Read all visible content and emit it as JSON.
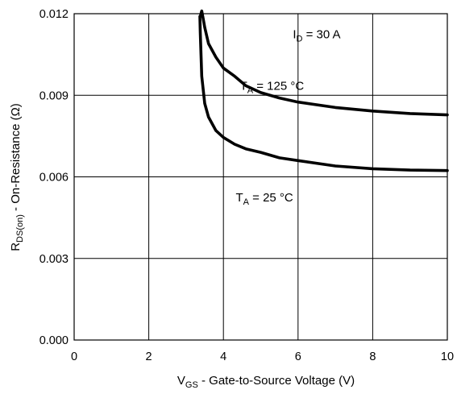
{
  "chart_data": {
    "type": "line",
    "title": "",
    "xlabel": {
      "main": "V",
      "sub": "GS",
      "rest": " - Gate-to-Source Voltage (V)"
    },
    "ylabel": {
      "main": "R",
      "sub": "DS(on)",
      "rest": " - On-Resistance (Ω)"
    },
    "xlim": [
      0,
      10
    ],
    "ylim": [
      0,
      0.012
    ],
    "x_ticks": [
      0,
      2,
      4,
      6,
      8,
      10
    ],
    "x_tick_labels": [
      "0",
      "2",
      "4",
      "6",
      "8",
      "10"
    ],
    "y_ticks": [
      0,
      0.003,
      0.006,
      0.009,
      0.012
    ],
    "y_tick_labels": [
      "0.000",
      "0.003",
      "0.006",
      "0.009",
      "0.012"
    ],
    "grid": true,
    "annotations": [
      {
        "id": "id-label",
        "main": "I",
        "sub": "D",
        "rest": " = 30 A",
        "x": 6.5,
        "y": 0.0111
      },
      {
        "id": "ta125-label",
        "main": "T",
        "sub": "A",
        "rest": " = 125 °C",
        "x": 5.3,
        "y": 0.0092
      },
      {
        "id": "ta25-label",
        "main": "T",
        "sub": "A",
        "rest": " = 25 °C",
        "x": 5.1,
        "y": 0.0051
      }
    ],
    "series": [
      {
        "key": "ta125",
        "x": [
          3.38,
          3.42,
          3.46,
          3.5,
          3.6,
          3.8,
          4.0,
          4.3,
          4.6,
          5.0,
          5.5,
          6.0,
          7.0,
          8.0,
          9.0,
          10.0
        ],
        "y": [
          0.0119,
          0.0121,
          0.0118,
          0.0115,
          0.0109,
          0.0104,
          0.01,
          0.0097,
          0.00935,
          0.0091,
          0.0089,
          0.00875,
          0.00855,
          0.00842,
          0.00833,
          0.00828
        ]
      },
      {
        "key": "ta25",
        "x": [
          3.37,
          3.38,
          3.42,
          3.5,
          3.6,
          3.8,
          4.0,
          4.3,
          4.6,
          5.0,
          5.5,
          6.0,
          7.0,
          8.0,
          9.0,
          10.0
        ],
        "y": [
          0.0119,
          0.0113,
          0.0097,
          0.0087,
          0.0082,
          0.0077,
          0.00745,
          0.0072,
          0.00703,
          0.0069,
          0.0067,
          0.0066,
          0.0064,
          0.0063,
          0.00625,
          0.00623
        ]
      }
    ]
  }
}
